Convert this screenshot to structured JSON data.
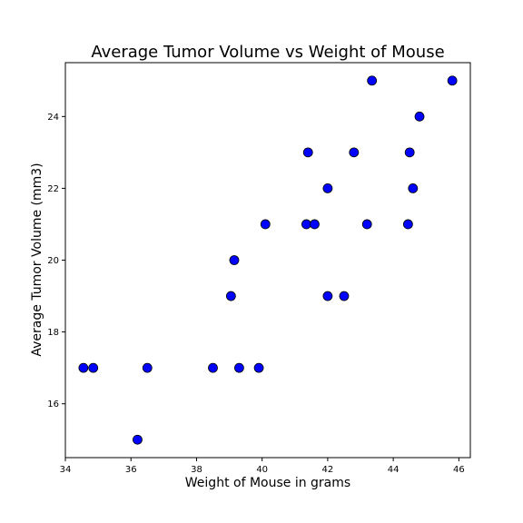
{
  "chart_data": {
    "type": "scatter",
    "title": "Average Tumor Volume vs Weight of Mouse",
    "xlabel": "Weight of Mouse in grams",
    "ylabel": "Average Tumor Volume (mm3)",
    "xlim": [
      34,
      46.35
    ],
    "ylim": [
      14.5,
      25.5
    ],
    "xticks": [
      34,
      36,
      38,
      40,
      42,
      44,
      46
    ],
    "yticks": [
      16,
      18,
      20,
      22,
      24
    ],
    "grid": false,
    "marker_color": "#0000ff",
    "marker_edge_color": "#000000",
    "points": [
      {
        "x": 34.55,
        "y": 17
      },
      {
        "x": 34.85,
        "y": 17
      },
      {
        "x": 36.2,
        "y": 15
      },
      {
        "x": 36.5,
        "y": 17
      },
      {
        "x": 38.5,
        "y": 17
      },
      {
        "x": 39.05,
        "y": 19
      },
      {
        "x": 39.15,
        "y": 20
      },
      {
        "x": 39.3,
        "y": 17
      },
      {
        "x": 39.9,
        "y": 17
      },
      {
        "x": 40.1,
        "y": 21
      },
      {
        "x": 41.35,
        "y": 21
      },
      {
        "x": 41.4,
        "y": 23
      },
      {
        "x": 41.6,
        "y": 21
      },
      {
        "x": 42.0,
        "y": 22
      },
      {
        "x": 42.0,
        "y": 19
      },
      {
        "x": 42.5,
        "y": 19
      },
      {
        "x": 42.8,
        "y": 23
      },
      {
        "x": 43.2,
        "y": 21
      },
      {
        "x": 43.35,
        "y": 25
      },
      {
        "x": 44.45,
        "y": 21
      },
      {
        "x": 44.5,
        "y": 23
      },
      {
        "x": 44.6,
        "y": 22
      },
      {
        "x": 44.8,
        "y": 24
      },
      {
        "x": 45.8,
        "y": 25
      }
    ]
  }
}
